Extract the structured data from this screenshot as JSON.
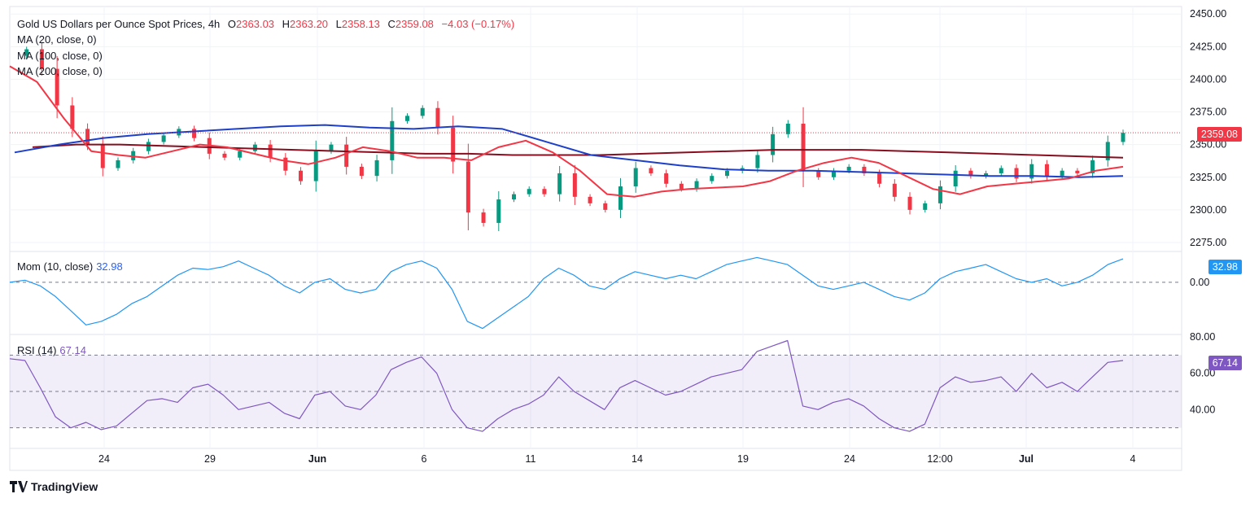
{
  "legend": {
    "symbol": "Gold US Dollars per Ounce Spot Prices, 4h",
    "open_label": "O",
    "open": "2363.03",
    "high_label": "H",
    "high": "2363.20",
    "low_label": "L",
    "low": "2358.13",
    "close_label": "C",
    "close": "2359.08",
    "change": "−4.03 (−0.17%)",
    "ma20": "MA (20, close, 0)",
    "ma100": "MA (100, close, 0)",
    "ma200": "MA (200, close, 0)",
    "mom": "Mom (10, close)",
    "mom_value": "32.98",
    "rsi": "RSI (14)",
    "rsi_value": "67.14"
  },
  "brand": "TradingView",
  "colors": {
    "up": "#089981",
    "down": "#f23645",
    "ma20": "#f23645",
    "ma100": "#1e40c8",
    "ma200": "#880e1f",
    "momentum": "#2196f3",
    "rsi": "#7e57c2",
    "rsi_band": "#7e57c2"
  },
  "chart_data": [
    {
      "type": "candlestick",
      "title": "Gold US Dollars per Ounce Spot Prices, 4h",
      "x_ticks": [
        "24",
        "29",
        "Jun",
        "6",
        "11",
        "14",
        "19",
        "24",
        "12:00",
        "Jul",
        "4"
      ],
      "y_ticks": [
        "2450.00",
        "2425.00",
        "2400.00",
        "2375.00",
        "2350.00",
        "2325.00",
        "2300.00",
        "2275.00"
      ],
      "ylim": [
        2270,
        2452
      ],
      "last_price": "2359.08",
      "close_path": [
        2418,
        2423,
        2408,
        2380,
        2362,
        2350,
        2332,
        2338,
        2345,
        2352,
        2357,
        2362,
        2355,
        2343,
        2340,
        2345,
        2350,
        2340,
        2330,
        2322,
        2345,
        2350,
        2333,
        2326,
        2338,
        2368,
        2372,
        2378,
        2363,
        2337,
        2298,
        2290,
        2308,
        2312,
        2316,
        2312,
        2328,
        2310,
        2305,
        2300,
        2318,
        2332,
        2328,
        2320,
        2316,
        2322,
        2326,
        2330,
        2332,
        2342,
        2358,
        2366,
        2330,
        2325,
        2330,
        2333,
        2328,
        2320,
        2310,
        2300,
        2305,
        2318,
        2330,
        2326,
        2328,
        2332,
        2324,
        2335,
        2326,
        2330,
        2328,
        2338,
        2352,
        2359
      ],
      "ma20": [
        2410,
        2398,
        2370,
        2345,
        2342,
        2340,
        2345,
        2350,
        2348,
        2343,
        2338,
        2335,
        2340,
        2348,
        2345,
        2340,
        2340,
        2338,
        2348,
        2353,
        2344,
        2330,
        2312,
        2310,
        2314,
        2316,
        2317,
        2318,
        2322,
        2330,
        2336,
        2340,
        2336,
        2326,
        2316,
        2312,
        2318,
        2320,
        2322,
        2324,
        2330,
        2333
      ],
      "ma100": [
        2344,
        2350,
        2355,
        2358,
        2360,
        2362,
        2364,
        2365,
        2363,
        2362,
        2364,
        2362,
        2352,
        2342,
        2338,
        2334,
        2331,
        2330,
        2330,
        2329,
        2328,
        2327,
        2326,
        2326,
        2325,
        2326
      ],
      "ma200": [
        2348,
        2350,
        2350,
        2349,
        2348,
        2347,
        2346,
        2345,
        2344,
        2343,
        2343,
        2342,
        2342,
        2342,
        2343,
        2344,
        2345,
        2346,
        2346,
        2346,
        2345,
        2344,
        2343,
        2342,
        2341,
        2340
      ]
    },
    {
      "type": "line",
      "title": "Mom (10, close)",
      "y_ticks": [
        "0.00"
      ],
      "last_value": "32.98",
      "values": [
        0,
        3,
        -5,
        -20,
        -40,
        -60,
        -55,
        -45,
        -30,
        -20,
        -5,
        10,
        20,
        18,
        22,
        30,
        20,
        10,
        -5,
        -15,
        0,
        5,
        -10,
        -15,
        -10,
        15,
        25,
        30,
        20,
        -10,
        -55,
        -65,
        -50,
        -35,
        -20,
        5,
        20,
        10,
        -5,
        -10,
        5,
        15,
        10,
        5,
        10,
        5,
        15,
        25,
        30,
        35,
        30,
        25,
        10,
        -5,
        -10,
        -5,
        0,
        -10,
        -20,
        -25,
        -15,
        5,
        15,
        20,
        25,
        15,
        5,
        0,
        5,
        -5,
        0,
        10,
        25,
        33
      ]
    },
    {
      "type": "line",
      "title": "RSI (14)",
      "y_ticks": [
        "80.00",
        "60.00",
        "40.00"
      ],
      "ylim": [
        20,
        80
      ],
      "bands": [
        30,
        50,
        70
      ],
      "last_value": "67.14",
      "values": [
        68,
        67,
        52,
        36,
        30,
        33,
        29,
        31,
        38,
        45,
        46,
        44,
        52,
        54,
        48,
        40,
        42,
        44,
        38,
        35,
        48,
        50,
        42,
        40,
        48,
        62,
        66,
        69,
        60,
        40,
        30,
        28,
        35,
        40,
        43,
        48,
        58,
        50,
        45,
        40,
        52,
        56,
        52,
        48,
        50,
        54,
        58,
        60,
        62,
        72,
        75,
        78,
        42,
        40,
        44,
        46,
        42,
        35,
        30,
        28,
        32,
        52,
        58,
        55,
        56,
        58,
        50,
        60,
        52,
        55,
        50,
        58,
        66,
        67
      ]
    }
  ]
}
